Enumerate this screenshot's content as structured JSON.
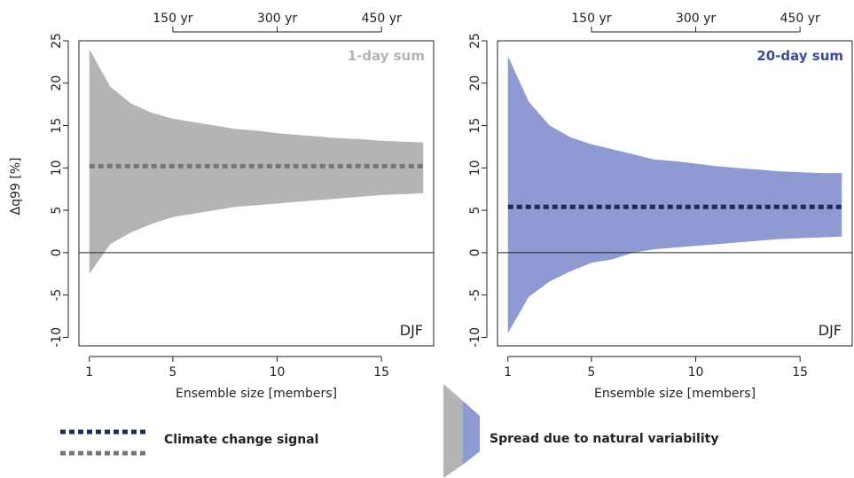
{
  "chart_data": [
    {
      "type": "area",
      "title": "1-day sum",
      "season": "DJF",
      "xlabel": "Ensemble size [members]",
      "ylabel": "Δq99 [%]",
      "xlim": [
        0.5,
        17.5
      ],
      "ylim": [
        -11,
        25
      ],
      "x_ticks": [
        1,
        5,
        10,
        15
      ],
      "y_ticks": [
        -10,
        -5,
        0,
        5,
        10,
        15,
        20,
        25
      ],
      "top_axis_ticks": [
        {
          "x": 5,
          "label": "150 yr"
        },
        {
          "x": 10,
          "label": "300 yr"
        },
        {
          "x": 15,
          "label": "450 yr"
        }
      ],
      "colors": {
        "band": "#b4b4b4",
        "signal": "#777777",
        "title": "#b4b4b4"
      },
      "x": [
        1,
        2,
        3,
        4,
        5,
        6,
        7,
        8,
        9,
        10,
        11,
        12,
        13,
        14,
        15,
        16,
        17
      ],
      "upper": [
        24.0,
        19.6,
        17.6,
        16.5,
        15.8,
        15.4,
        15.0,
        14.6,
        14.4,
        14.1,
        13.9,
        13.7,
        13.5,
        13.4,
        13.2,
        13.1,
        13.0
      ],
      "lower": [
        -2.5,
        1.0,
        2.4,
        3.4,
        4.2,
        4.6,
        5.0,
        5.4,
        5.6,
        5.8,
        6.0,
        6.2,
        6.4,
        6.6,
        6.8,
        6.9,
        7.0
      ],
      "signal": 10.2
    },
    {
      "type": "area",
      "title": "20-day sum",
      "season": "DJF",
      "xlabel": "Ensemble size [members]",
      "ylabel": "",
      "xlim": [
        0.5,
        17.5
      ],
      "ylim": [
        -11,
        25
      ],
      "x_ticks": [
        1,
        5,
        10,
        15
      ],
      "y_ticks": [
        -10,
        -5,
        0,
        5,
        10,
        15,
        20,
        25
      ],
      "top_axis_ticks": [
        {
          "x": 5,
          "label": "150 yr"
        },
        {
          "x": 10,
          "label": "300 yr"
        },
        {
          "x": 15,
          "label": "450 yr"
        }
      ],
      "colors": {
        "band": "#8f9ad2",
        "signal": "#1f2a5c",
        "title": "#3c4a9a"
      },
      "x": [
        1,
        2,
        3,
        4,
        5,
        6,
        7,
        8,
        9,
        10,
        11,
        12,
        13,
        14,
        15,
        16,
        17
      ],
      "upper": [
        23.2,
        17.8,
        15.0,
        13.6,
        12.8,
        12.2,
        11.6,
        11.0,
        10.8,
        10.5,
        10.2,
        10.0,
        9.8,
        9.6,
        9.5,
        9.4,
        9.4
      ],
      "lower": [
        -9.5,
        -5.2,
        -3.4,
        -2.2,
        -1.2,
        -0.8,
        0.0,
        0.4,
        0.6,
        0.8,
        1.0,
        1.2,
        1.4,
        1.6,
        1.7,
        1.8,
        1.9
      ],
      "signal": 5.4
    }
  ],
  "legend": {
    "signal_label": "Climate change signal",
    "spread_label": "Spread due to natural variability",
    "signal_colors": [
      "#1f2a5c",
      "#777777"
    ],
    "spread_colors": [
      "#b4b4b4",
      "#8f9ad2"
    ]
  }
}
